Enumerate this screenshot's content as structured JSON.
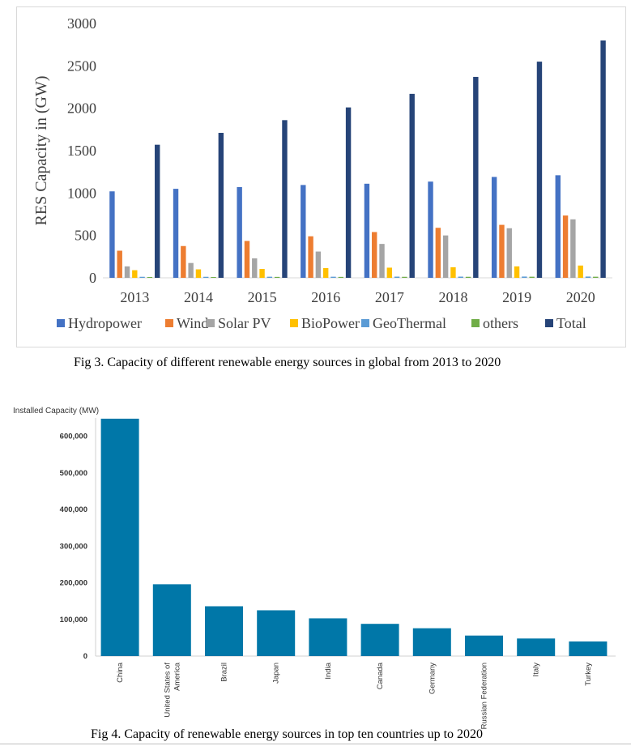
{
  "chart_data": [
    {
      "type": "bar",
      "ylabel": "RES Capacity in (GW)",
      "ylim": [
        0,
        3000
      ],
      "yticks": [
        0,
        500,
        1000,
        1500,
        2000,
        2500,
        3000
      ],
      "legend_position": "bottom",
      "grid": false,
      "categories": [
        "2013",
        "2014",
        "2015",
        "2016",
        "2017",
        "2018",
        "2019",
        "2020"
      ],
      "series": [
        {
          "name": "Hydropower",
          "color": "#4472c4",
          "values": [
            1020,
            1050,
            1070,
            1095,
            1110,
            1135,
            1190,
            1210
          ]
        },
        {
          "name": "Wind",
          "color": "#ed7d31",
          "values": [
            320,
            375,
            435,
            490,
            540,
            590,
            625,
            735
          ]
        },
        {
          "name": "Solar PV",
          "color": "#a5a5a5",
          "values": [
            135,
            175,
            230,
            310,
            400,
            500,
            585,
            690
          ]
        },
        {
          "name": "BioPower",
          "color": "#ffc000",
          "values": [
            90,
            100,
            105,
            115,
            120,
            125,
            135,
            145
          ]
        },
        {
          "name": "GeoThermal",
          "color": "#5b9bd5",
          "values": [
            12,
            12,
            13,
            13,
            14,
            14,
            15,
            15
          ]
        },
        {
          "name": "others",
          "color": "#70ad47",
          "values": [
            10,
            10,
            11,
            11,
            12,
            12,
            13,
            13
          ]
        },
        {
          "name": "Total",
          "color": "#264478",
          "values": [
            1570,
            1710,
            1860,
            2010,
            2170,
            2370,
            2550,
            2800
          ]
        }
      ],
      "caption": "Fig 3. Capacity of different renewable energy sources in global from 2013 to 2020"
    },
    {
      "type": "bar",
      "title": "Installed Capacity (MW)",
      "ylim": [
        0,
        650000
      ],
      "yticks": [
        "0",
        "100,000",
        "200,000",
        "300,000",
        "400,000",
        "500,000",
        "600,000"
      ],
      "ytick_values": [
        0,
        100000,
        200000,
        300000,
        400000,
        500000,
        600000
      ],
      "grid": false,
      "color": "#0077a8",
      "categories": [
        "China",
        "United States of America",
        "Brazil",
        "Japan",
        "India",
        "Canada",
        "Germany",
        "Russian Federation",
        "Italy",
        "Turkey"
      ],
      "category_lines": [
        [
          "China"
        ],
        [
          "United States of",
          "America"
        ],
        [
          "Brazil"
        ],
        [
          "Japan"
        ],
        [
          "India"
        ],
        [
          "Canada"
        ],
        [
          "Germany"
        ],
        [
          "Russian Federation"
        ],
        [
          "Italy"
        ],
        [
          "Turkey"
        ]
      ],
      "values": [
        648000,
        196000,
        136000,
        125000,
        103000,
        88000,
        76000,
        56000,
        48000,
        40000
      ],
      "caption": "Fig 4. Capacity of renewable energy sources in top ten countries up to 2020"
    }
  ]
}
